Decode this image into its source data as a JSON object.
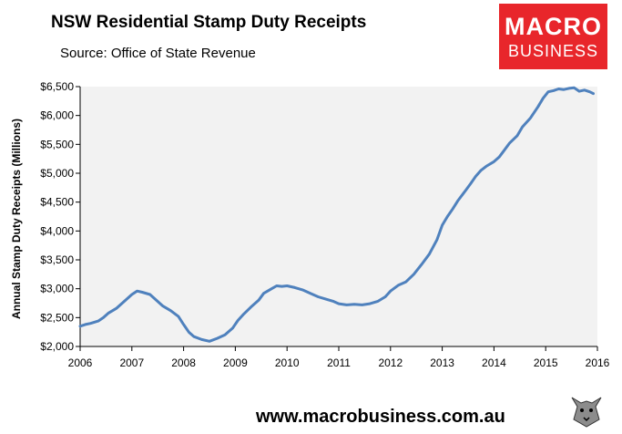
{
  "header": {
    "title": "NSW Residential Stamp Duty Receipts",
    "subtitle": "Source: Office of State Revenue"
  },
  "logo": {
    "line1": "MACRO",
    "line2": "BUSINESS",
    "color": "#e8262b"
  },
  "footer": {
    "url": "www.macrobusiness.com.au"
  },
  "colors": {
    "line": "#4f81bd",
    "plot_bg": "#f2f2f2"
  },
  "chart_data": {
    "type": "line",
    "title": "NSW Residential Stamp Duty Receipts",
    "xlabel": "",
    "ylabel": "Annual Stamp Duty Receipts (Millions)",
    "xlim": [
      2006,
      2016
    ],
    "ylim": [
      2000,
      6500
    ],
    "x_ticks": [
      "2006",
      "2007",
      "2008",
      "2009",
      "2010",
      "2011",
      "2012",
      "2013",
      "2014",
      "2015",
      "2016"
    ],
    "y_ticks": [
      {
        "value": 2000,
        "label": "$2,000"
      },
      {
        "value": 2500,
        "label": "$2,500"
      },
      {
        "value": 3000,
        "label": "$3,000"
      },
      {
        "value": 3500,
        "label": "$3,500"
      },
      {
        "value": 4000,
        "label": "$4,000"
      },
      {
        "value": 4500,
        "label": "$4,500"
      },
      {
        "value": 5000,
        "label": "$5,000"
      },
      {
        "value": 5500,
        "label": "$5,500"
      },
      {
        "value": 6000,
        "label": "$6,000"
      },
      {
        "value": 6500,
        "label": "$6,500"
      }
    ],
    "grid": false,
    "series": [
      {
        "x": [
          2006.0,
          2006.1,
          2006.2,
          2006.35,
          2006.45,
          2006.55,
          2006.7,
          2006.85,
          2007.0,
          2007.1,
          2007.2,
          2007.35,
          2007.5,
          2007.6,
          2007.75,
          2007.9,
          2008.0,
          2008.1,
          2008.2,
          2008.35,
          2008.5,
          2008.65,
          2008.8,
          2008.95,
          2009.05,
          2009.15,
          2009.3,
          2009.45,
          2009.55,
          2009.7,
          2009.8,
          2009.9,
          2010.0,
          2010.15,
          2010.3,
          2010.45,
          2010.6,
          2010.75,
          2010.9,
          2011.0,
          2011.15,
          2011.3,
          2011.45,
          2011.6,
          2011.75,
          2011.9,
          2012.0,
          2012.15,
          2012.3,
          2012.45,
          2012.6,
          2012.75,
          2012.9,
          2013.0,
          2013.1,
          2013.2,
          2013.3,
          2013.45,
          2013.55,
          2013.65,
          2013.75,
          2013.85,
          2014.0,
          2014.1,
          2014.2,
          2014.3,
          2014.45,
          2014.55,
          2014.7,
          2014.85,
          2014.95,
          2015.05,
          2015.15,
          2015.25,
          2015.35,
          2015.45,
          2015.55,
          2015.65,
          2015.75,
          2015.85,
          2015.92
        ],
        "y": [
          2350,
          2380,
          2400,
          2440,
          2500,
          2580,
          2660,
          2780,
          2900,
          2960,
          2940,
          2900,
          2780,
          2700,
          2620,
          2520,
          2380,
          2250,
          2170,
          2120,
          2090,
          2140,
          2200,
          2320,
          2450,
          2550,
          2680,
          2800,
          2920,
          3000,
          3050,
          3040,
          3050,
          3020,
          2980,
          2920,
          2860,
          2820,
          2780,
          2740,
          2720,
          2730,
          2720,
          2740,
          2780,
          2860,
          2960,
          3060,
          3120,
          3250,
          3420,
          3600,
          3850,
          4100,
          4250,
          4380,
          4520,
          4700,
          4820,
          4950,
          5050,
          5120,
          5200,
          5280,
          5400,
          5520,
          5650,
          5800,
          5950,
          6150,
          6300,
          6410,
          6430,
          6460,
          6450,
          6470,
          6480,
          6420,
          6440,
          6410,
          6380
        ]
      }
    ]
  }
}
